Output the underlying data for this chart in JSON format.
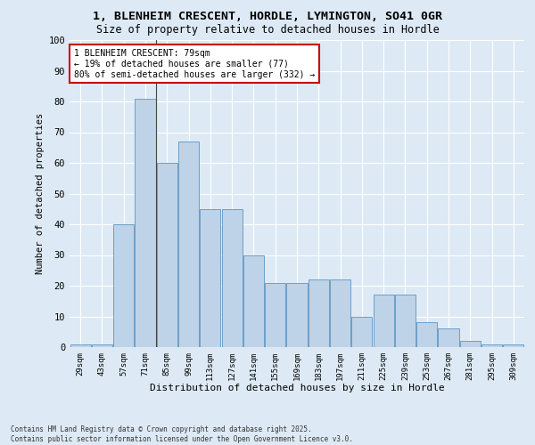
{
  "title1": "1, BLENHEIM CRESCENT, HORDLE, LYMINGTON, SO41 0GR",
  "title2": "Size of property relative to detached houses in Hordle",
  "xlabel": "Distribution of detached houses by size in Hordle",
  "ylabel": "Number of detached properties",
  "bar_color": "#bed3e8",
  "bar_edge_color": "#6b9fc8",
  "bg_color": "#ddeaf5",
  "grid_color": "#ffffff",
  "categories": [
    "29sqm",
    "43sqm",
    "57sqm",
    "71sqm",
    "85sqm",
    "99sqm",
    "113sqm",
    "127sqm",
    "141sqm",
    "155sqm",
    "169sqm",
    "183sqm",
    "197sqm",
    "211sqm",
    "225sqm",
    "239sqm",
    "253sqm",
    "267sqm",
    "281sqm",
    "295sqm",
    "309sqm"
  ],
  "bar_values": [
    1,
    1,
    40,
    81,
    60,
    67,
    45,
    45,
    30,
    21,
    21,
    22,
    22,
    10,
    17,
    17,
    8,
    6,
    2,
    1,
    1
  ],
  "ylim": [
    0,
    100
  ],
  "yticks": [
    0,
    10,
    20,
    30,
    40,
    50,
    60,
    70,
    80,
    90,
    100
  ],
  "annotation_text": "1 BLENHEIM CRESCENT: 79sqm\n← 19% of detached houses are smaller (77)\n80% of semi-detached houses are larger (332) →",
  "annotation_box_color": "#cc0000",
  "vline_index": 3,
  "footer": "Contains HM Land Registry data © Crown copyright and database right 2025.\nContains public sector information licensed under the Open Government Licence v3.0."
}
